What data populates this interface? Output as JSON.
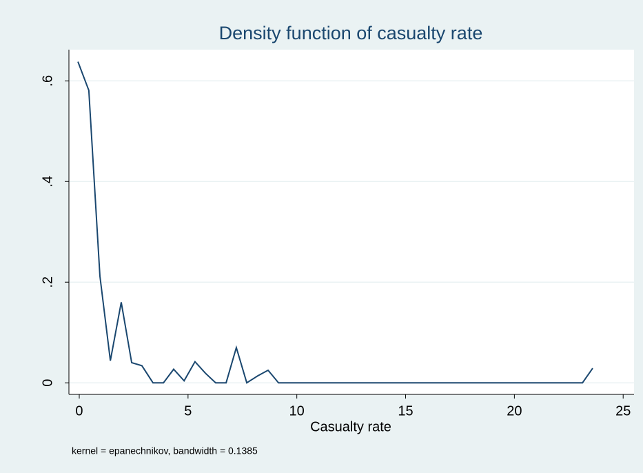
{
  "chart_data": {
    "type": "line",
    "title": "Density function of casualty rate",
    "x_label": "Casualty rate",
    "note": "kernel = epanechnikov, bandwidth = 0.1385",
    "x": [
      -0.06,
      0.44,
      0.95,
      1.43,
      1.93,
      2.41,
      2.88,
      3.39,
      3.87,
      4.34,
      4.82,
      5.32,
      5.8,
      6.27,
      6.75,
      7.22,
      7.7,
      8.21,
      8.68,
      9.16,
      23.13,
      23.6
    ],
    "series": [
      {
        "name": "density",
        "color": "#1a476f",
        "values": [
          0.638,
          0.581,
          0.212,
          0.044,
          0.16,
          0.04,
          0.034,
          0,
          0,
          0.027,
          0.004,
          0.042,
          0.019,
          0,
          0,
          0.07,
          0,
          0.014,
          0.025,
          0,
          0,
          0.029
        ]
      }
    ],
    "xlim": [
      -0.475,
      25.5
    ],
    "ylim": [
      -0.023,
      0.662
    ],
    "xticks": [
      0,
      5,
      10,
      15,
      20,
      25
    ],
    "yticks": [
      0,
      {
        "value": 0.2,
        "label": ".2"
      },
      {
        "value": 0.4,
        "label": ".4"
      },
      {
        "value": 0.6,
        "label": ".6"
      }
    ],
    "grid": true
  }
}
